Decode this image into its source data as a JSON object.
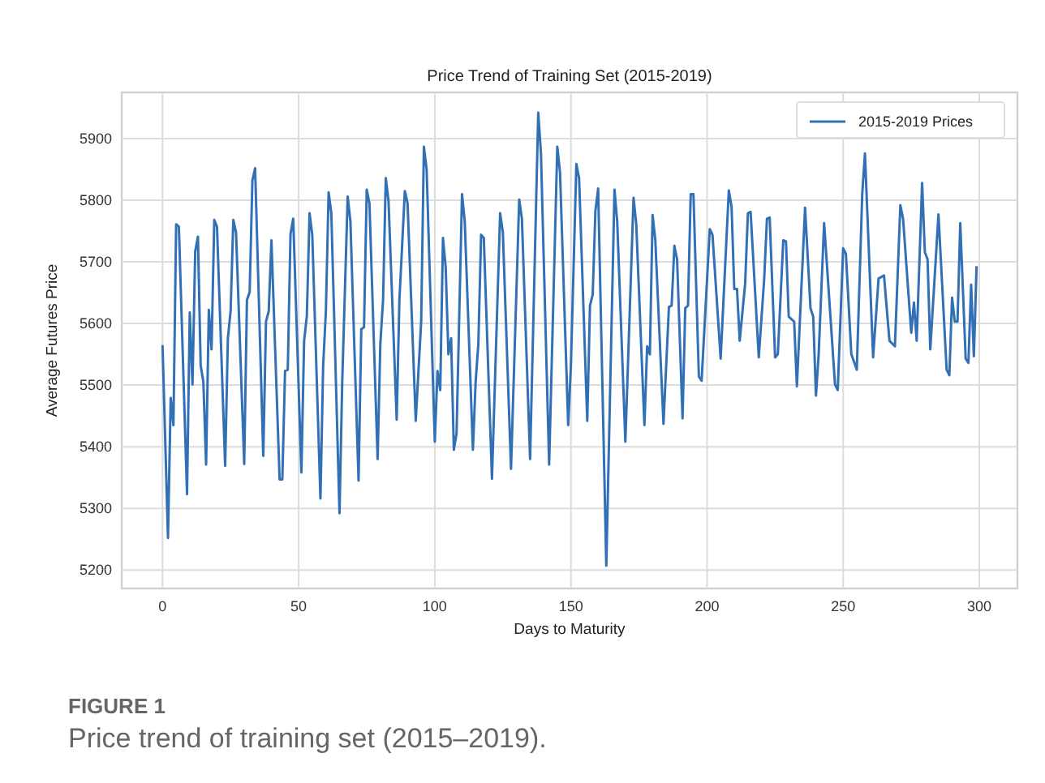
{
  "chart_data": {
    "type": "line",
    "title": "Price Trend of Training Set (2015-2019)",
    "xlabel": "Days to Maturity",
    "ylabel": "Average Futures Price",
    "annotations": [
      "FIGURE 1",
      "Price trend of training set (2015–2019)."
    ],
    "xlim": [
      -15,
      314
    ],
    "ylim": [
      5170,
      5975
    ],
    "xticks": [
      0,
      50,
      100,
      150,
      200,
      250,
      300
    ],
    "yticks": [
      5200,
      5300,
      5400,
      5500,
      5600,
      5700,
      5800,
      5900
    ],
    "grid": true,
    "legend": "top right",
    "marker": "none",
    "line_style": "solid",
    "series": [
      {
        "name": "2015-2019 Prices",
        "color": "#3270b5",
        "x": [
          0,
          2,
          3,
          4,
          5,
          6,
          9,
          10,
          11,
          12,
          13,
          14,
          15,
          16,
          17,
          18,
          19,
          20,
          23,
          24,
          25,
          26,
          27,
          30,
          31,
          32,
          33,
          34,
          37,
          38,
          39,
          40,
          43,
          44,
          45,
          46,
          47,
          48,
          51,
          52,
          53,
          54,
          55,
          58,
          59,
          60,
          61,
          62,
          65,
          66,
          68,
          69,
          72,
          73,
          74,
          75,
          76,
          79,
          80,
          81,
          82,
          83,
          86,
          87,
          89,
          90,
          93,
          95,
          96,
          97,
          100,
          101,
          102,
          103,
          104,
          105,
          106,
          107,
          108,
          110,
          111,
          114,
          115,
          116,
          117,
          118,
          121,
          124,
          125,
          128,
          131,
          132,
          135,
          138,
          139,
          142,
          145,
          146,
          149,
          150,
          152,
          153,
          156,
          157,
          158,
          159,
          160,
          163,
          166,
          167,
          170,
          173,
          174,
          177,
          178,
          179,
          180,
          181,
          184,
          186,
          187,
          188,
          189,
          191,
          192,
          193,
          194,
          195,
          197,
          198,
          201,
          202,
          205,
          208,
          209,
          210,
          211,
          212,
          214,
          215,
          216,
          219,
          221,
          222,
          223,
          225,
          226,
          228,
          229,
          230,
          232,
          233,
          236,
          238,
          239,
          240,
          241,
          243,
          247,
          248,
          250,
          251,
          253,
          255,
          257,
          258,
          261,
          263,
          265,
          267,
          269,
          271,
          272,
          275,
          276,
          277,
          279,
          280,
          281,
          282,
          285,
          288,
          289,
          290,
          291,
          292,
          293,
          295,
          296,
          297,
          298,
          299
        ],
        "values": [
          5565,
          5252,
          5479,
          5435,
          5761,
          5757,
          5323,
          5618,
          5501,
          5717,
          5741,
          5532,
          5505,
          5371,
          5622,
          5558,
          5768,
          5757,
          5369,
          5576,
          5620,
          5768,
          5748,
          5372,
          5638,
          5651,
          5832,
          5852,
          5385,
          5603,
          5620,
          5735,
          5347,
          5347,
          5523,
          5525,
          5745,
          5770,
          5358,
          5572,
          5612,
          5779,
          5744,
          5316,
          5532,
          5620,
          5813,
          5779,
          5292,
          5505,
          5806,
          5766,
          5345,
          5591,
          5594,
          5817,
          5795,
          5380,
          5567,
          5638,
          5836,
          5799,
          5444,
          5638,
          5815,
          5795,
          5442,
          5603,
          5887,
          5850,
          5408,
          5523,
          5492,
          5739,
          5691,
          5550,
          5576,
          5395,
          5422,
          5810,
          5766,
          5395,
          5505,
          5567,
          5744,
          5739,
          5348,
          5779,
          5748,
          5364,
          5801,
          5770,
          5380,
          5942,
          5876,
          5371,
          5887,
          5845,
          5435,
          5532,
          5859,
          5836,
          5442,
          5629,
          5647,
          5783,
          5819,
          5207,
          5817,
          5766,
          5408,
          5804,
          5761,
          5435,
          5563,
          5550,
          5776,
          5735,
          5437,
          5627,
          5629,
          5726,
          5704,
          5446,
          5625,
          5629,
          5810,
          5810,
          5514,
          5507,
          5753,
          5744,
          5543,
          5816,
          5790,
          5656,
          5656,
          5572,
          5665,
          5779,
          5781,
          5545,
          5673,
          5770,
          5772,
          5545,
          5550,
          5735,
          5733,
          5611,
          5603,
          5498,
          5788,
          5625,
          5611,
          5483,
          5550,
          5763,
          5501,
          5492,
          5722,
          5713,
          5550,
          5525,
          5810,
          5876,
          5545,
          5673,
          5678,
          5572,
          5563,
          5792,
          5770,
          5585,
          5634,
          5572,
          5828,
          5716,
          5704,
          5558,
          5777,
          5525,
          5516,
          5642,
          5603,
          5603,
          5763,
          5543,
          5536,
          5663,
          5547,
          5693
        ]
      }
    ]
  }
}
